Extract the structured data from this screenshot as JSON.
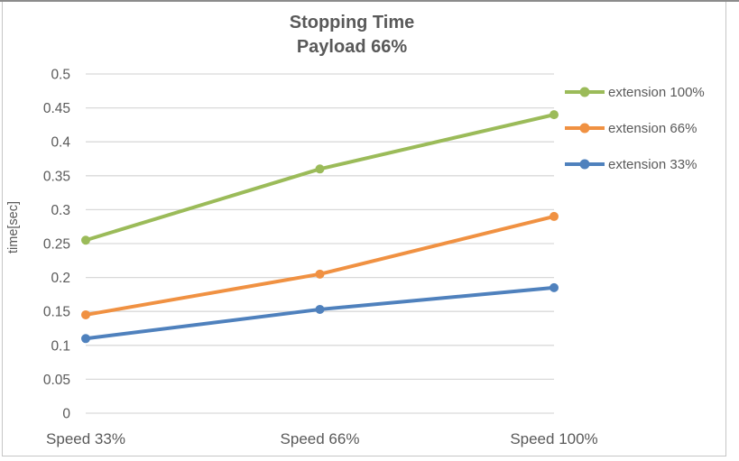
{
  "chart_data": {
    "type": "line",
    "title": "Stopping Time",
    "subtitle": "Payload 66%",
    "ylabel": "time[sec]",
    "xlabel": "",
    "categories": [
      "Speed 33%",
      "Speed 66%",
      "Speed 100%"
    ],
    "series": [
      {
        "name": "extension 100%",
        "color": "#9BBB59",
        "values": [
          0.255,
          0.36,
          0.44
        ]
      },
      {
        "name": "extension 66%",
        "color": "#F09142",
        "values": [
          0.145,
          0.205,
          0.29
        ]
      },
      {
        "name": "extension 33%",
        "color": "#4F81BD",
        "values": [
          0.11,
          0.153,
          0.185
        ]
      }
    ],
    "ylim": [
      0,
      0.5
    ],
    "ytick_step": 0.05,
    "ytick_labels": [
      "0",
      "0.05",
      "0.1",
      "0.15",
      "0.2",
      "0.25",
      "0.3",
      "0.35",
      "0.4",
      "0.45",
      "0.5"
    ],
    "grid": true,
    "legend_position": "right",
    "marker": "circle"
  },
  "style": {
    "text_color": "#595959",
    "grid_color": "#D9D9D9",
    "frame_border_color": "#C6C6C6",
    "top_edge_color": "#8C8C8C",
    "background": "#FFFFFF"
  }
}
